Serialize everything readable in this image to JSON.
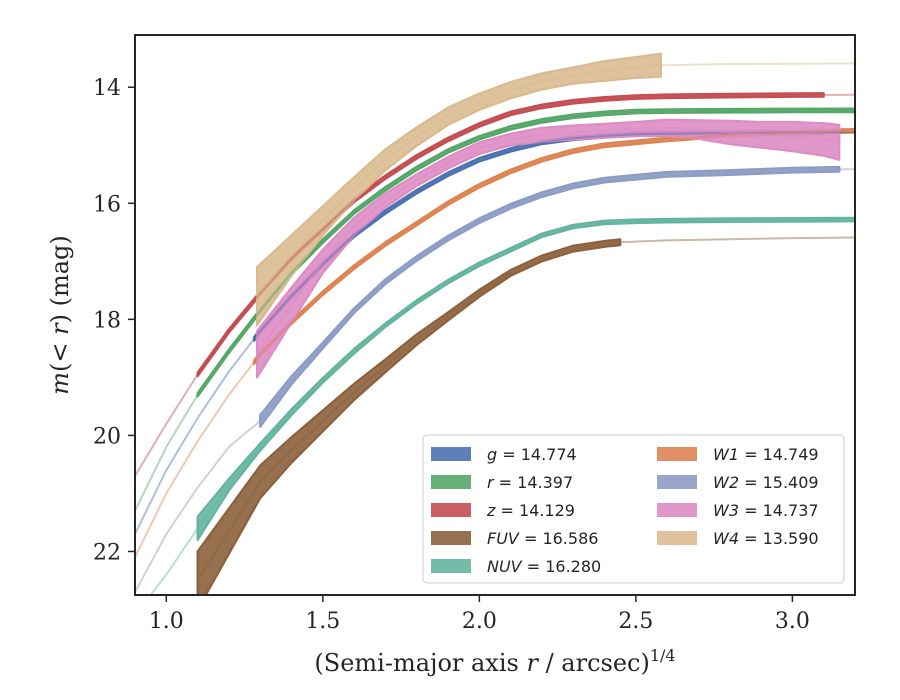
{
  "chart_data": {
    "type": "line",
    "xlabel_html": "(Semi-major axis r / arcsec)^1/4",
    "ylabel": "m(< r) (mag)",
    "xlim": [
      0.9,
      3.2
    ],
    "ylim": [
      22.75,
      13.1
    ],
    "y_inverted": true,
    "x_ticks": [
      "1.0",
      "1.5",
      "2.0",
      "2.5",
      "3.0"
    ],
    "x_tick_values": [
      1.0,
      1.5,
      2.0,
      2.5,
      3.0
    ],
    "y_ticks": [
      "14",
      "16",
      "18",
      "20",
      "22"
    ],
    "y_tick_values": [
      14,
      16,
      18,
      20,
      22
    ],
    "legend_position": "lower right",
    "series": [
      {
        "name": "g",
        "total": "14.774",
        "color": "#4c72b0",
        "x": [
          0.9,
          1.0,
          1.1,
          1.2,
          1.3,
          1.4,
          1.5,
          1.6,
          1.7,
          1.8,
          1.9,
          2.0,
          2.1,
          2.2,
          2.3,
          2.4,
          2.5,
          2.6,
          2.8,
          3.0,
          3.2
        ],
        "y": [
          21.7,
          20.6,
          19.7,
          18.9,
          18.2,
          17.6,
          17.05,
          16.55,
          16.15,
          15.8,
          15.5,
          15.25,
          15.08,
          14.95,
          14.88,
          14.84,
          14.81,
          14.8,
          14.79,
          14.78,
          14.775
        ],
        "dy": [
          0.03,
          0.03,
          0.03,
          0.03,
          0.03,
          0.03,
          0.03,
          0.03,
          0.03,
          0.03,
          0.03,
          0.03,
          0.03,
          0.03,
          0.03,
          0.03,
          0.03,
          0.03,
          0.03,
          0.03,
          0.03
        ],
        "x_solid_start": 1.28,
        "x_solid_end": 3.1
      },
      {
        "name": "r",
        "total": "14.397",
        "color": "#55a868",
        "x": [
          0.9,
          1.0,
          1.1,
          1.2,
          1.3,
          1.4,
          1.5,
          1.6,
          1.7,
          1.8,
          1.9,
          2.0,
          2.1,
          2.2,
          2.3,
          2.4,
          2.5,
          2.6,
          2.8,
          3.0,
          3.2
        ],
        "y": [
          21.3,
          20.2,
          19.3,
          18.55,
          17.85,
          17.2,
          16.65,
          16.15,
          15.75,
          15.4,
          15.1,
          14.87,
          14.7,
          14.58,
          14.5,
          14.45,
          14.42,
          14.41,
          14.405,
          14.4,
          14.398
        ],
        "dy": [
          0.03,
          0.03,
          0.03,
          0.03,
          0.03,
          0.03,
          0.03,
          0.03,
          0.03,
          0.03,
          0.03,
          0.03,
          0.03,
          0.03,
          0.03,
          0.03,
          0.03,
          0.03,
          0.03,
          0.03,
          0.03
        ],
        "x_solid_start": 1.1,
        "x_solid_end": 3.2
      },
      {
        "name": "z",
        "total": "14.129",
        "color": "#c44e52",
        "x": [
          0.9,
          1.0,
          1.1,
          1.2,
          1.3,
          1.4,
          1.5,
          1.6,
          1.7,
          1.8,
          1.9,
          2.0,
          2.1,
          2.2,
          2.3,
          2.4,
          2.5,
          2.6,
          2.8,
          3.0,
          3.2
        ],
        "y": [
          20.7,
          19.8,
          18.95,
          18.2,
          17.55,
          16.95,
          16.45,
          15.95,
          15.55,
          15.2,
          14.9,
          14.65,
          14.45,
          14.33,
          14.25,
          14.2,
          14.17,
          14.155,
          14.145,
          14.135,
          14.13
        ],
        "dy": [
          0.03,
          0.03,
          0.03,
          0.03,
          0.03,
          0.03,
          0.03,
          0.03,
          0.03,
          0.03,
          0.03,
          0.03,
          0.03,
          0.03,
          0.03,
          0.03,
          0.03,
          0.03,
          0.03,
          0.03,
          0.03
        ],
        "x_solid_start": 1.1,
        "x_solid_end": 3.1
      },
      {
        "name": "FUV",
        "total": "16.586",
        "color": "#8c613c",
        "x": [
          1.1,
          1.3,
          1.4,
          1.5,
          1.6,
          1.7,
          1.8,
          1.9,
          2.0,
          2.1,
          2.2,
          2.3,
          2.4,
          2.45,
          2.6,
          2.8,
          3.0,
          3.2
        ],
        "y": [
          22.5,
          20.8,
          20.25,
          19.75,
          19.25,
          18.8,
          18.35,
          17.95,
          17.55,
          17.2,
          16.95,
          16.78,
          16.7,
          16.67,
          16.64,
          16.62,
          16.6,
          16.59
        ],
        "dy": [
          0.5,
          0.28,
          0.22,
          0.18,
          0.14,
          0.11,
          0.09,
          0.07,
          0.06,
          0.05,
          0.05,
          0.05,
          0.05,
          0.05,
          0.01,
          0.01,
          0.01,
          0.01
        ],
        "x_solid_start": 1.1,
        "x_solid_end": 2.45
      },
      {
        "name": "NUV",
        "total": "16.280",
        "color": "#64b5a0",
        "x": [
          0.9,
          1.0,
          1.1,
          1.2,
          1.3,
          1.4,
          1.5,
          1.6,
          1.7,
          1.8,
          1.9,
          2.0,
          2.1,
          2.2,
          2.3,
          2.4,
          2.5,
          2.6,
          2.8,
          3.0,
          3.2
        ],
        "y": [
          23.1,
          22.4,
          21.6,
          20.85,
          20.2,
          19.6,
          19.05,
          18.55,
          18.1,
          17.7,
          17.35,
          17.05,
          16.8,
          16.55,
          16.4,
          16.33,
          16.31,
          16.3,
          16.29,
          16.285,
          16.28
        ],
        "dy": [
          0.03,
          0.03,
          0.2,
          0.1,
          0.06,
          0.05,
          0.04,
          0.04,
          0.03,
          0.03,
          0.03,
          0.03,
          0.03,
          0.03,
          0.03,
          0.03,
          0.03,
          0.03,
          0.03,
          0.03,
          0.03
        ],
        "x_solid_start": 1.1,
        "x_solid_end": 3.2
      },
      {
        "name": "W1",
        "total": "14.749",
        "color": "#dd8452",
        "x": [
          0.9,
          1.0,
          1.1,
          1.2,
          1.3,
          1.4,
          1.5,
          1.6,
          1.7,
          1.8,
          1.9,
          2.0,
          2.1,
          2.2,
          2.3,
          2.4,
          2.5,
          2.6,
          2.8,
          3.0,
          3.2
        ],
        "y": [
          22.1,
          21.0,
          20.1,
          19.3,
          18.6,
          18.05,
          17.55,
          17.1,
          16.7,
          16.35,
          16.0,
          15.7,
          15.45,
          15.25,
          15.1,
          15.0,
          14.95,
          14.9,
          14.82,
          14.78,
          14.75
        ],
        "dy": [
          0.03,
          0.03,
          0.03,
          0.03,
          0.03,
          0.03,
          0.03,
          0.03,
          0.03,
          0.03,
          0.03,
          0.03,
          0.03,
          0.03,
          0.03,
          0.03,
          0.03,
          0.03,
          0.03,
          0.03,
          0.03
        ],
        "x_solid_start": 1.28,
        "x_solid_end": 3.2
      },
      {
        "name": "W2",
        "total": "15.409",
        "color": "#8c9cc4",
        "x": [
          0.9,
          1.0,
          1.1,
          1.2,
          1.3,
          1.4,
          1.5,
          1.6,
          1.7,
          1.8,
          1.9,
          2.0,
          2.1,
          2.2,
          2.3,
          2.4,
          2.5,
          2.6,
          2.8,
          3.0,
          3.2
        ],
        "y": [
          22.7,
          21.7,
          20.9,
          20.2,
          19.75,
          19.05,
          18.45,
          17.85,
          17.35,
          16.95,
          16.6,
          16.3,
          16.05,
          15.85,
          15.7,
          15.6,
          15.55,
          15.5,
          15.47,
          15.43,
          15.41
        ],
        "dy": [
          0.03,
          0.03,
          0.03,
          0.03,
          0.1,
          0.07,
          0.05,
          0.04,
          0.04,
          0.04,
          0.04,
          0.04,
          0.04,
          0.04,
          0.04,
          0.04,
          0.04,
          0.04,
          0.04,
          0.04,
          0.04
        ],
        "x_solid_start": 1.3,
        "x_solid_end": 3.15
      },
      {
        "name": "W3",
        "total": "14.737",
        "color": "#dd8cc4",
        "x": [
          1.29,
          1.4,
          1.5,
          1.6,
          1.7,
          1.8,
          1.9,
          2.0,
          2.1,
          2.2,
          2.3,
          2.4,
          2.5,
          2.6,
          2.7,
          2.8,
          2.9,
          3.0,
          3.1,
          3.15
        ],
        "y": [
          18.6,
          17.75,
          17.0,
          16.4,
          15.95,
          15.6,
          15.3,
          15.05,
          14.9,
          14.82,
          14.78,
          14.75,
          14.72,
          14.7,
          14.73,
          14.78,
          14.82,
          14.85,
          14.9,
          14.95
        ],
        "dy": [
          0.4,
          0.3,
          0.2,
          0.15,
          0.12,
          0.1,
          0.1,
          0.1,
          0.1,
          0.12,
          0.12,
          0.12,
          0.12,
          0.14,
          0.16,
          0.2,
          0.22,
          0.25,
          0.28,
          0.3
        ],
        "x_solid_start": 1.29,
        "x_solid_end": 3.15
      },
      {
        "name": "W4",
        "total": "13.590",
        "color": "#d9bb90",
        "x": [
          1.29,
          1.4,
          1.5,
          1.6,
          1.7,
          1.8,
          1.9,
          2.0,
          2.1,
          2.2,
          2.3,
          2.4,
          2.5,
          2.58,
          2.7,
          2.8,
          3.0,
          3.2
        ],
        "y": [
          17.6,
          16.9,
          16.3,
          15.75,
          15.25,
          14.85,
          14.5,
          14.25,
          14.05,
          13.9,
          13.8,
          13.72,
          13.66,
          13.62,
          13.61,
          13.6,
          13.595,
          13.59
        ],
        "dy": [
          0.5,
          0.35,
          0.25,
          0.2,
          0.18,
          0.16,
          0.15,
          0.14,
          0.14,
          0.14,
          0.14,
          0.17,
          0.18,
          0.2,
          0.01,
          0.01,
          0.01,
          0.01
        ],
        "x_solid_start": 1.29,
        "x_solid_end": 2.58
      }
    ]
  }
}
